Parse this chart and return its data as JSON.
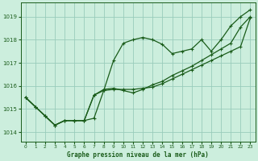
{
  "title": "Graphe pression niveau de la mer (hPa)",
  "background_color": "#cceedd",
  "grid_color": "#99ccbb",
  "line_color": "#1a5c1a",
  "xlim": [
    -0.5,
    23.5
  ],
  "ylim": [
    1013.6,
    1019.6
  ],
  "yticks": [
    1014,
    1015,
    1016,
    1017,
    1018,
    1019
  ],
  "xtick_labels": [
    "0",
    "1",
    "2",
    "3",
    "4",
    "5",
    "6",
    "7",
    "8",
    "9",
    "10",
    "11",
    "12",
    "13",
    "14",
    "15",
    "16",
    "17",
    "18",
    "19",
    "20",
    "21",
    "22",
    "23"
  ],
  "series1_x": [
    0,
    1,
    2,
    3,
    4,
    5,
    6,
    7,
    8,
    9,
    10,
    11,
    12,
    13,
    14,
    15,
    16,
    17,
    18,
    19,
    20,
    21,
    22,
    23
  ],
  "series1_y": [
    1015.5,
    1015.1,
    1014.7,
    1014.3,
    1014.5,
    1014.5,
    1014.5,
    1014.6,
    1015.8,
    1017.1,
    1017.85,
    1018.0,
    1018.1,
    1018.0,
    1017.8,
    1017.4,
    1017.5,
    1017.6,
    1018.0,
    1017.5,
    1018.0,
    1018.6,
    1019.0,
    1019.3
  ],
  "series2_x": [
    0,
    1,
    2,
    3,
    4,
    5,
    6,
    7,
    8,
    9,
    10,
    11,
    12,
    13,
    14,
    15,
    16,
    17,
    18,
    19,
    20,
    21,
    22,
    23
  ],
  "series2_y": [
    1015.5,
    1015.1,
    1014.7,
    1014.3,
    1014.5,
    1014.5,
    1014.5,
    1015.6,
    1015.85,
    1015.9,
    1015.8,
    1015.7,
    1015.85,
    1016.05,
    1016.2,
    1016.45,
    1016.65,
    1016.85,
    1017.1,
    1017.35,
    1017.6,
    1017.85,
    1018.55,
    1019.0
  ],
  "series3_x": [
    0,
    1,
    2,
    3,
    4,
    5,
    6,
    7,
    8,
    9,
    10,
    11,
    12,
    13,
    14,
    15,
    16,
    17,
    18,
    19,
    20,
    21,
    22,
    23
  ],
  "series3_y": [
    1015.5,
    1015.1,
    1014.7,
    1014.3,
    1014.5,
    1014.5,
    1014.5,
    1015.6,
    1015.8,
    1015.85,
    1015.85,
    1015.85,
    1015.9,
    1015.95,
    1016.1,
    1016.3,
    1016.5,
    1016.7,
    1016.9,
    1017.1,
    1017.3,
    1017.5,
    1017.7,
    1018.95
  ]
}
